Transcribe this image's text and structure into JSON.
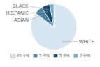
{
  "chart_data": {
    "type": "pie",
    "categories": [
      "WHITE",
      "ASIAN",
      "HISPANIC",
      "BLACK"
    ],
    "values": [
      85.3,
      5.9,
      5.9,
      2.9
    ],
    "value_labels": [
      "85.3%",
      "5.9%",
      "5.9%",
      "2.9%"
    ],
    "colors": [
      "#d6e5ef",
      "#4a7fa0",
      "#1a4a6b",
      "#7aafc8"
    ],
    "legend": "bottom"
  }
}
